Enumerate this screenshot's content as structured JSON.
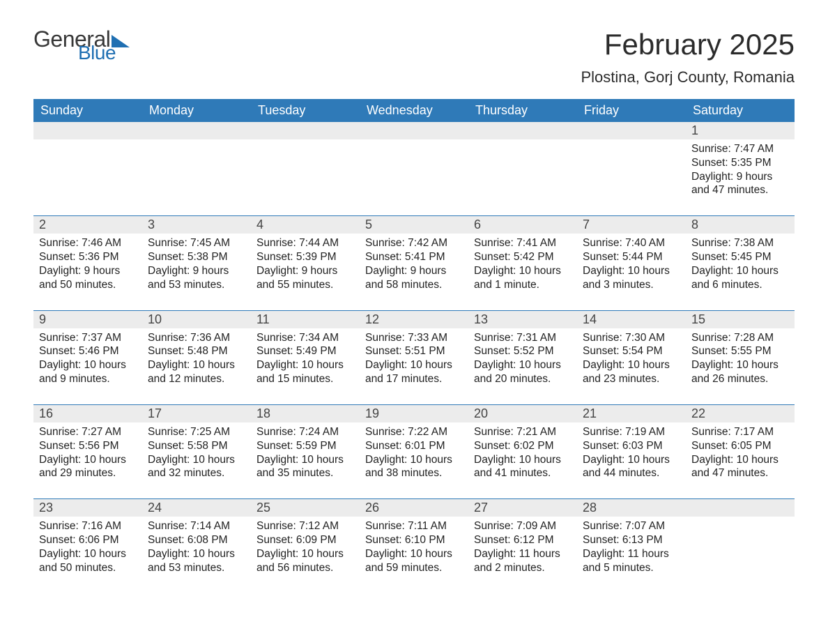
{
  "logo": {
    "text1": "General",
    "text2": "Blue"
  },
  "title": "February 2025",
  "location": "Plostina, Gorj County, Romania",
  "colors": {
    "header_bg": "#2f7ab8",
    "header_fg": "#ffffff",
    "row_divider": "#2f7ab8",
    "daynum_bg": "#ececec",
    "body_bg": "#ffffff",
    "text": "#222222",
    "logo_blue": "#1f6fb2",
    "logo_gray": "#383838"
  },
  "weekdays": [
    "Sunday",
    "Monday",
    "Tuesday",
    "Wednesday",
    "Thursday",
    "Friday",
    "Saturday"
  ],
  "weeks": [
    [
      null,
      null,
      null,
      null,
      null,
      null,
      {
        "n": "1",
        "sunrise": "Sunrise: 7:47 AM",
        "sunset": "Sunset: 5:35 PM",
        "daylight": "Daylight: 9 hours and 47 minutes."
      }
    ],
    [
      {
        "n": "2",
        "sunrise": "Sunrise: 7:46 AM",
        "sunset": "Sunset: 5:36 PM",
        "daylight": "Daylight: 9 hours and 50 minutes."
      },
      {
        "n": "3",
        "sunrise": "Sunrise: 7:45 AM",
        "sunset": "Sunset: 5:38 PM",
        "daylight": "Daylight: 9 hours and 53 minutes."
      },
      {
        "n": "4",
        "sunrise": "Sunrise: 7:44 AM",
        "sunset": "Sunset: 5:39 PM",
        "daylight": "Daylight: 9 hours and 55 minutes."
      },
      {
        "n": "5",
        "sunrise": "Sunrise: 7:42 AM",
        "sunset": "Sunset: 5:41 PM",
        "daylight": "Daylight: 9 hours and 58 minutes."
      },
      {
        "n": "6",
        "sunrise": "Sunrise: 7:41 AM",
        "sunset": "Sunset: 5:42 PM",
        "daylight": "Daylight: 10 hours and 1 minute."
      },
      {
        "n": "7",
        "sunrise": "Sunrise: 7:40 AM",
        "sunset": "Sunset: 5:44 PM",
        "daylight": "Daylight: 10 hours and 3 minutes."
      },
      {
        "n": "8",
        "sunrise": "Sunrise: 7:38 AM",
        "sunset": "Sunset: 5:45 PM",
        "daylight": "Daylight: 10 hours and 6 minutes."
      }
    ],
    [
      {
        "n": "9",
        "sunrise": "Sunrise: 7:37 AM",
        "sunset": "Sunset: 5:46 PM",
        "daylight": "Daylight: 10 hours and 9 minutes."
      },
      {
        "n": "10",
        "sunrise": "Sunrise: 7:36 AM",
        "sunset": "Sunset: 5:48 PM",
        "daylight": "Daylight: 10 hours and 12 minutes."
      },
      {
        "n": "11",
        "sunrise": "Sunrise: 7:34 AM",
        "sunset": "Sunset: 5:49 PM",
        "daylight": "Daylight: 10 hours and 15 minutes."
      },
      {
        "n": "12",
        "sunrise": "Sunrise: 7:33 AM",
        "sunset": "Sunset: 5:51 PM",
        "daylight": "Daylight: 10 hours and 17 minutes."
      },
      {
        "n": "13",
        "sunrise": "Sunrise: 7:31 AM",
        "sunset": "Sunset: 5:52 PM",
        "daylight": "Daylight: 10 hours and 20 minutes."
      },
      {
        "n": "14",
        "sunrise": "Sunrise: 7:30 AM",
        "sunset": "Sunset: 5:54 PM",
        "daylight": "Daylight: 10 hours and 23 minutes."
      },
      {
        "n": "15",
        "sunrise": "Sunrise: 7:28 AM",
        "sunset": "Sunset: 5:55 PM",
        "daylight": "Daylight: 10 hours and 26 minutes."
      }
    ],
    [
      {
        "n": "16",
        "sunrise": "Sunrise: 7:27 AM",
        "sunset": "Sunset: 5:56 PM",
        "daylight": "Daylight: 10 hours and 29 minutes."
      },
      {
        "n": "17",
        "sunrise": "Sunrise: 7:25 AM",
        "sunset": "Sunset: 5:58 PM",
        "daylight": "Daylight: 10 hours and 32 minutes."
      },
      {
        "n": "18",
        "sunrise": "Sunrise: 7:24 AM",
        "sunset": "Sunset: 5:59 PM",
        "daylight": "Daylight: 10 hours and 35 minutes."
      },
      {
        "n": "19",
        "sunrise": "Sunrise: 7:22 AM",
        "sunset": "Sunset: 6:01 PM",
        "daylight": "Daylight: 10 hours and 38 minutes."
      },
      {
        "n": "20",
        "sunrise": "Sunrise: 7:21 AM",
        "sunset": "Sunset: 6:02 PM",
        "daylight": "Daylight: 10 hours and 41 minutes."
      },
      {
        "n": "21",
        "sunrise": "Sunrise: 7:19 AM",
        "sunset": "Sunset: 6:03 PM",
        "daylight": "Daylight: 10 hours and 44 minutes."
      },
      {
        "n": "22",
        "sunrise": "Sunrise: 7:17 AM",
        "sunset": "Sunset: 6:05 PM",
        "daylight": "Daylight: 10 hours and 47 minutes."
      }
    ],
    [
      {
        "n": "23",
        "sunrise": "Sunrise: 7:16 AM",
        "sunset": "Sunset: 6:06 PM",
        "daylight": "Daylight: 10 hours and 50 minutes."
      },
      {
        "n": "24",
        "sunrise": "Sunrise: 7:14 AM",
        "sunset": "Sunset: 6:08 PM",
        "daylight": "Daylight: 10 hours and 53 minutes."
      },
      {
        "n": "25",
        "sunrise": "Sunrise: 7:12 AM",
        "sunset": "Sunset: 6:09 PM",
        "daylight": "Daylight: 10 hours and 56 minutes."
      },
      {
        "n": "26",
        "sunrise": "Sunrise: 7:11 AM",
        "sunset": "Sunset: 6:10 PM",
        "daylight": "Daylight: 10 hours and 59 minutes."
      },
      {
        "n": "27",
        "sunrise": "Sunrise: 7:09 AM",
        "sunset": "Sunset: 6:12 PM",
        "daylight": "Daylight: 11 hours and 2 minutes."
      },
      {
        "n": "28",
        "sunrise": "Sunrise: 7:07 AM",
        "sunset": "Sunset: 6:13 PM",
        "daylight": "Daylight: 11 hours and 5 minutes."
      },
      null
    ]
  ]
}
